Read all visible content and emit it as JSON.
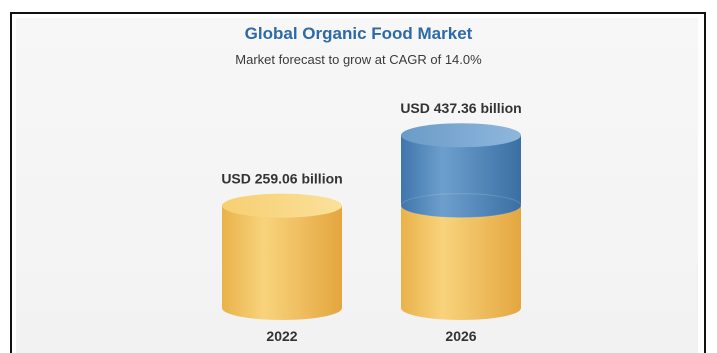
{
  "chart_data": {
    "type": "bar",
    "style": "3d-cylinder",
    "title": "Global Organic Food Market",
    "subtitle": "Market forecast to grow at CAGR of 14.0%",
    "categories": [
      "2022",
      "2026"
    ],
    "values": [
      259.06,
      437.36
    ],
    "value_labels": [
      "USD 259.06 billion",
      "USD 437.36 billion"
    ],
    "unit": "USD billion",
    "growth_segment": {
      "category": "2026",
      "value": 178.3,
      "color": "#5a8fc0"
    },
    "base_color": "#f3c25a",
    "grid": false,
    "legend": "none"
  }
}
